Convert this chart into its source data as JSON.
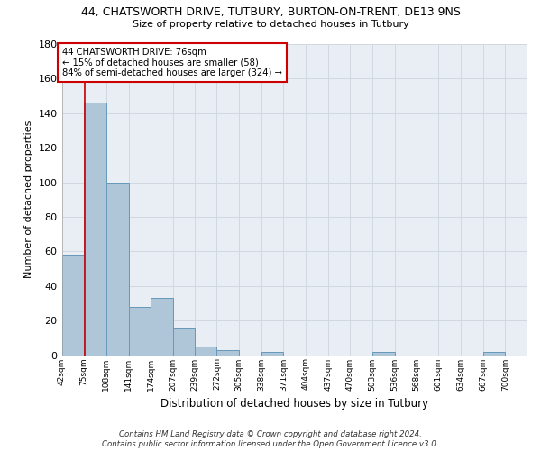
{
  "title": "44, CHATSWORTH DRIVE, TUTBURY, BURTON-ON-TRENT, DE13 9NS",
  "subtitle": "Size of property relative to detached houses in Tutbury",
  "xlabel": "Distribution of detached houses by size in Tutbury",
  "ylabel": "Number of detached properties",
  "bin_labels": [
    "42sqm",
    "75sqm",
    "108sqm",
    "141sqm",
    "174sqm",
    "207sqm",
    "239sqm",
    "272sqm",
    "305sqm",
    "338sqm",
    "371sqm",
    "404sqm",
    "437sqm",
    "470sqm",
    "503sqm",
    "536sqm",
    "568sqm",
    "601sqm",
    "634sqm",
    "667sqm",
    "700sqm"
  ],
  "bin_edges": [
    42,
    75,
    108,
    141,
    174,
    207,
    239,
    272,
    305,
    338,
    371,
    404,
    437,
    470,
    503,
    536,
    568,
    601,
    634,
    667,
    700
  ],
  "bar_heights": [
    58,
    146,
    100,
    28,
    33,
    16,
    5,
    3,
    0,
    2,
    0,
    0,
    0,
    0,
    2,
    0,
    0,
    0,
    0,
    2
  ],
  "bar_color": "#aec6d8",
  "bar_edge_color": "#6699bb",
  "property_size": 76,
  "property_line_color": "#cc0000",
  "annotation_line1": "44 CHATSWORTH DRIVE: 76sqm",
  "annotation_line2": "← 15% of detached houses are smaller (58)",
  "annotation_line3": "84% of semi-detached houses are larger (324) →",
  "annotation_box_color": "#ffffff",
  "annotation_box_edge": "#cc0000",
  "ylim": [
    0,
    180
  ],
  "yticks": [
    0,
    20,
    40,
    60,
    80,
    100,
    120,
    140,
    160,
    180
  ],
  "grid_color": "#d0d8e0",
  "bg_color": "#e8eef4",
  "plot_bg_color": "#e8eef4",
  "footer": "Contains HM Land Registry data © Crown copyright and database right 2024.\nContains public sector information licensed under the Open Government Licence v3.0."
}
